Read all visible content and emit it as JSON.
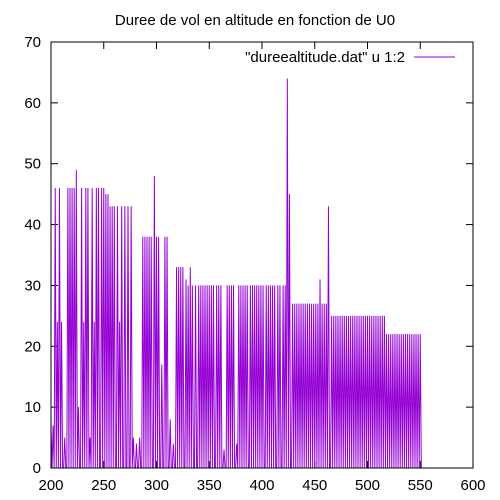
{
  "chart_data": {
    "type": "line",
    "title": "Duree de vol en altitude en fonction de U0",
    "xlabel": "",
    "ylabel": "",
    "xlim": [
      200,
      600
    ],
    "ylim": [
      0,
      70
    ],
    "x_ticks": [
      200,
      250,
      300,
      350,
      400,
      450,
      500,
      550,
      600
    ],
    "y_ticks": [
      0,
      10,
      20,
      30,
      40,
      50,
      60,
      70
    ],
    "grid": false,
    "legend": {
      "position": "top-right"
    },
    "colors": {
      "series": "#9400d3",
      "axes": "#000000"
    },
    "series": [
      {
        "name": "\"dureealtitude.dat\" u 1:2",
        "x_step": 1,
        "x_start": 200,
        "values": [
          7,
          0,
          7,
          0,
          46,
          0,
          24,
          0,
          46,
          0,
          24,
          0,
          0,
          5,
          0,
          0,
          46,
          0,
          46,
          0,
          46,
          0,
          46,
          0,
          49,
          0,
          10,
          0,
          0,
          46,
          0,
          24,
          0,
          46,
          0,
          46,
          0,
          5,
          0,
          46,
          0,
          24,
          0,
          46,
          0,
          46,
          0,
          0,
          46,
          0,
          46,
          0,
          45,
          0,
          45,
          0,
          43,
          0,
          43,
          0,
          43,
          0,
          0,
          43,
          0,
          24,
          0,
          43,
          0,
          0,
          43,
          0,
          0,
          43,
          0,
          0,
          43,
          0,
          5,
          0,
          0,
          4,
          0,
          0,
          5,
          0,
          0,
          38,
          0,
          38,
          0,
          38,
          0,
          38,
          0,
          38,
          0,
          0,
          48,
          0,
          38,
          0,
          38,
          0,
          0,
          17,
          0,
          0,
          38,
          0,
          38,
          0,
          0,
          8,
          0,
          0,
          4,
          0,
          0,
          33,
          0,
          33,
          0,
          33,
          0,
          33,
          0,
          0,
          31,
          0,
          30,
          0,
          33,
          0,
          30,
          0,
          0,
          30,
          0,
          0,
          30,
          0,
          30,
          0,
          30,
          0,
          30,
          0,
          30,
          0,
          30,
          0,
          30,
          0,
          30,
          0,
          0,
          30,
          0,
          30,
          0,
          30,
          0,
          0,
          3,
          0,
          0,
          30,
          0,
          30,
          0,
          30,
          0,
          30,
          0,
          0,
          4,
          0,
          30,
          0,
          30,
          0,
          30,
          0,
          30,
          0,
          30,
          0,
          0,
          30,
          0,
          30,
          0,
          30,
          0,
          30,
          0,
          30,
          0,
          30,
          0,
          30,
          0,
          0,
          30,
          0,
          30,
          0,
          30,
          0,
          30,
          0,
          30,
          0,
          0,
          30,
          0,
          30,
          0,
          0,
          30,
          0,
          30,
          0,
          64,
          0,
          45,
          0,
          0,
          27,
          0,
          27,
          0,
          27,
          0,
          27,
          0,
          27,
          0,
          27,
          0,
          27,
          0,
          27,
          0,
          27,
          0,
          27,
          0,
          27,
          0,
          27,
          0,
          27,
          0,
          31,
          0,
          27,
          0,
          27,
          0,
          27,
          0,
          43,
          0,
          0,
          25,
          0,
          25,
          0,
          25,
          0,
          25,
          0,
          25,
          0,
          25,
          0,
          25,
          0,
          25,
          0,
          25,
          0,
          25,
          0,
          25,
          0,
          25,
          0,
          25,
          0,
          25,
          0,
          25,
          0,
          25,
          0,
          25,
          0,
          25,
          0,
          25,
          0,
          25,
          0,
          25,
          0,
          25,
          0,
          25,
          0,
          25,
          0,
          25,
          0,
          25,
          0,
          22,
          0,
          22,
          0,
          22,
          0,
          22,
          0,
          22,
          0,
          22,
          0,
          22,
          0,
          22,
          0,
          22,
          0,
          22,
          0,
          22,
          0,
          22,
          0,
          22,
          0,
          22,
          0,
          22,
          0,
          22,
          0,
          22,
          0
        ]
      }
    ]
  }
}
